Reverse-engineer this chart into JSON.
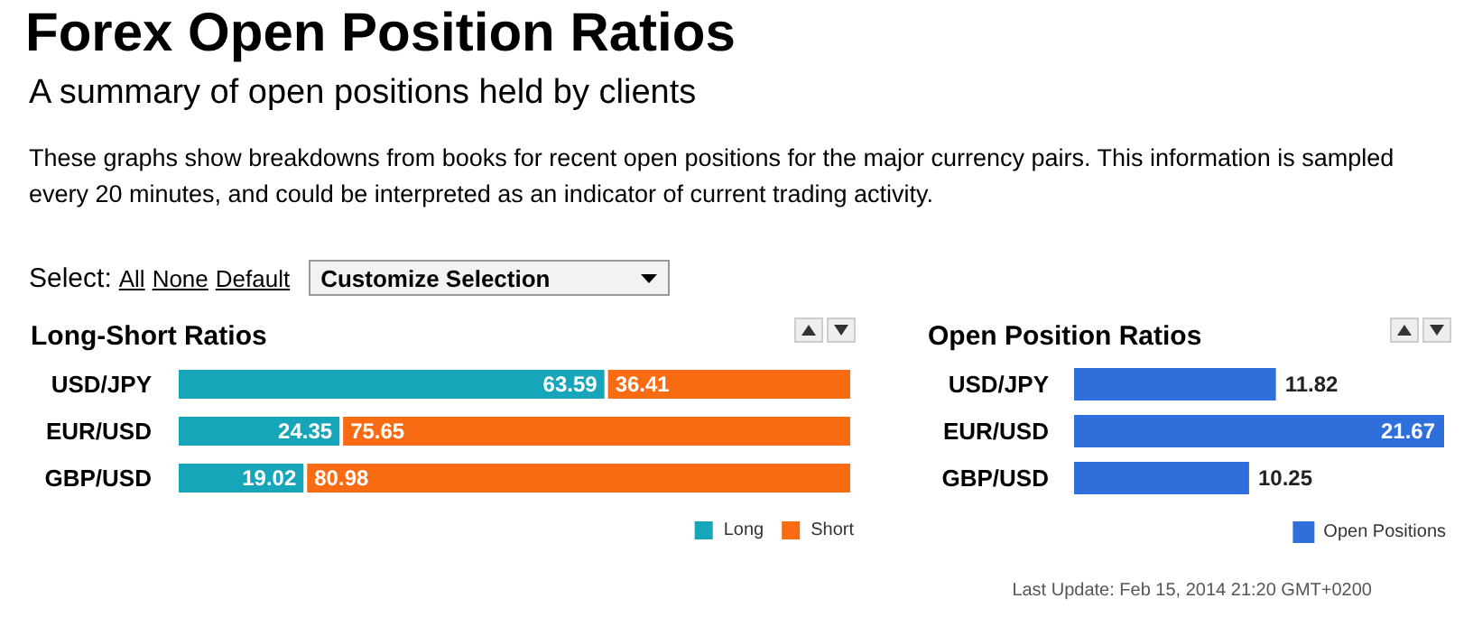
{
  "chart_data": [
    {
      "type": "other",
      "title": "Forex Open Position Ratios",
      "subtitle": "A summary of open positions held by clients",
      "annotations": [
        "These graphs show breakdowns from books for recent open positions for the major currency pairs. This information is sampled every 20 minutes, and could be interpreted as an indicator of current trading activity.",
        "Select:",
        "All",
        "None",
        "Default",
        "Customize Selection"
      ]
    },
    {
      "type": "bar",
      "title": "Long-Short Ratios",
      "orientation": "horizontal",
      "stacked": true,
      "categories": [
        "USD/JPY",
        "EUR/USD",
        "GBP/USD"
      ],
      "series": [
        {
          "name": "Long",
          "color": "#17a5b9",
          "values": [
            63.59,
            24.35,
            19.02
          ]
        },
        {
          "name": "Short",
          "color": "#f86b12",
          "values": [
            36.41,
            75.65,
            80.98
          ]
        }
      ],
      "data_labels": true,
      "legend": "bottom right"
    },
    {
      "type": "bar",
      "title": "Open Position Ratios",
      "orientation": "horizontal",
      "categories": [
        "USD/JPY",
        "EUR/USD",
        "GBP/USD"
      ],
      "series": [
        {
          "name": "Open Positions",
          "color": "#2f6fdc",
          "values": [
            11.82,
            21.67,
            10.25
          ]
        }
      ],
      "data_labels": true,
      "legend": "bottom right",
      "annotations": [
        "Last Update: Feb 15, 2014 21:20 GMT+0200"
      ]
    }
  ]
}
